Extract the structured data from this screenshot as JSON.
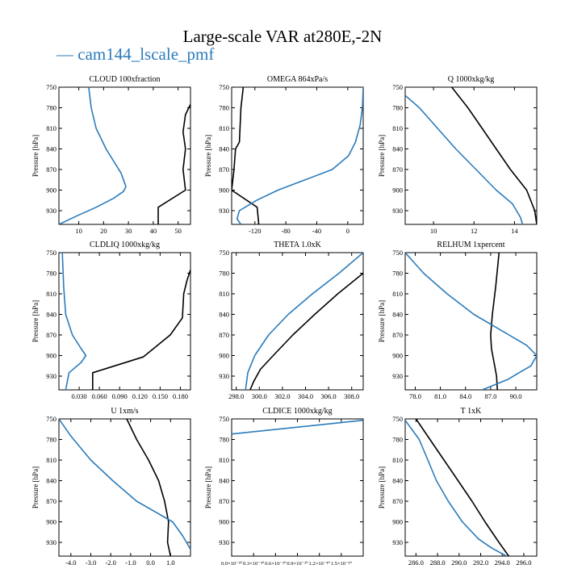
{
  "title": "Large-scale VAR at280E,-2N",
  "legend": {
    "marker": "—",
    "label": "cam144_lscale_pmf"
  },
  "colors": {
    "black_series": "#000000",
    "blue_series": "#2b7bba"
  },
  "chart_data": [
    {
      "type": "line",
      "title": "CLOUD  100xfraction",
      "ylabel": "Pressure [hPa]",
      "ylim": [
        750,
        950
      ],
      "ytick_values": [
        750,
        780,
        810,
        840,
        870,
        900,
        930
      ],
      "ytick_labels": [
        "750",
        "780",
        "810",
        "840",
        "870",
        "900",
        "930"
      ],
      "xlim": [
        2,
        55
      ],
      "xtick_values": [
        10,
        20,
        30,
        40,
        50
      ],
      "xtick_labels": [
        "10",
        "20",
        "30",
        "40",
        "50"
      ],
      "series": [
        {
          "color": "#000000",
          "x": [
            55,
            53,
            52,
            53,
            52,
            53,
            42,
            42
          ],
          "y": [
            775,
            790,
            815,
            840,
            870,
            900,
            925,
            950
          ]
        },
        {
          "color": "#2b7bba",
          "x": [
            14,
            15,
            17,
            21,
            27,
            29,
            28,
            24,
            17,
            9,
            2
          ],
          "y": [
            750,
            780,
            810,
            840,
            875,
            895,
            902,
            912,
            925,
            938,
            950
          ]
        }
      ]
    },
    {
      "type": "line",
      "title": "OMEGA  864xPa/s",
      "ylabel": "Pressure [hPa]",
      "ylim": [
        750,
        950
      ],
      "ytick_values": [
        750,
        780,
        810,
        840,
        870,
        900,
        930
      ],
      "ytick_labels": [
        "750",
        "780",
        "810",
        "840",
        "870",
        "900",
        "930"
      ],
      "xlim": [
        -150,
        20
      ],
      "xtick_values": [
        -120,
        -80,
        -40,
        0
      ],
      "xtick_labels": [
        "-120",
        "-80",
        "-40",
        "0"
      ],
      "series": [
        {
          "color": "#000000",
          "x": [
            -135,
            -138,
            -140,
            -145,
            -147,
            -150,
            -117,
            -115
          ],
          "y": [
            750,
            780,
            830,
            840,
            870,
            900,
            925,
            950
          ]
        },
        {
          "color": "#2b7bba",
          "x": [
            20,
            19,
            16,
            10,
            1,
            -20,
            -55,
            -90,
            -118,
            -140,
            -143,
            -138
          ],
          "y": [
            750,
            780,
            805,
            830,
            850,
            870,
            885,
            900,
            915,
            930,
            942,
            950
          ]
        }
      ]
    },
    {
      "type": "line",
      "title": "Q  1000xkg/kg",
      "ylabel": "Pressure [hPa]",
      "ylim": [
        750,
        950
      ],
      "ytick_values": [
        750,
        780,
        810,
        840,
        870,
        900,
        930
      ],
      "ytick_labels": [
        "750",
        "780",
        "810",
        "840",
        "870",
        "900",
        "930"
      ],
      "xlim": [
        8.6,
        15.1
      ],
      "xtick_values": [
        10,
        12,
        14
      ],
      "xtick_labels": [
        "10",
        "12",
        "14"
      ],
      "series": [
        {
          "color": "#000000",
          "x": [
            10.9,
            11.7,
            12.4,
            13.1,
            13.8,
            14.6,
            15.0,
            15.1
          ],
          "y": [
            750,
            780,
            810,
            840,
            870,
            900,
            930,
            950
          ]
        },
        {
          "color": "#2b7bba",
          "x": [
            8.6,
            9.3,
            10.2,
            11.1,
            12.1,
            13.1,
            13.9,
            14.3,
            14.4
          ],
          "y": [
            762,
            780,
            810,
            840,
            870,
            900,
            920,
            940,
            950
          ]
        }
      ]
    },
    {
      "type": "line",
      "title": "CLDLIQ  1000xkg/kg",
      "ylabel": "Pressure [hPa]",
      "ylim": [
        750,
        950
      ],
      "ytick_values": [
        750,
        780,
        810,
        840,
        870,
        900,
        930
      ],
      "ytick_labels": [
        "750",
        "780",
        "810",
        "840",
        "870",
        "900",
        "930"
      ],
      "xlim": [
        0.0,
        0.195
      ],
      "xtick_values": [
        0.03,
        0.06,
        0.09,
        0.12,
        0.15,
        0.18
      ],
      "xtick_labels": [
        "0.030",
        "0.060",
        "0.090",
        "0.120",
        "0.150",
        "0.180"
      ],
      "series": [
        {
          "color": "#000000",
          "x": [
            0.195,
            0.19,
            0.185,
            0.183,
            0.165,
            0.125,
            0.05,
            0.05
          ],
          "y": [
            775,
            790,
            810,
            845,
            870,
            902,
            925,
            950
          ]
        },
        {
          "color": "#2b7bba",
          "x": [
            0.005,
            0.007,
            0.01,
            0.02,
            0.033,
            0.04,
            0.033,
            0.015,
            0.01
          ],
          "y": [
            750,
            800,
            840,
            870,
            890,
            900,
            910,
            925,
            950
          ]
        }
      ]
    },
    {
      "type": "line",
      "title": "THETA  1.0xK",
      "ylabel": "",
      "ylim": [
        750,
        950
      ],
      "ytick_values": [
        750,
        780,
        810,
        840,
        870,
        900,
        930
      ],
      "ytick_labels": [
        "750",
        "780",
        "810",
        "840",
        "870",
        "900",
        "930"
      ],
      "xlim": [
        297.6,
        309.0
      ],
      "xtick_values": [
        298.0,
        300.0,
        302.0,
        304.0,
        306.0,
        308.0
      ],
      "xtick_labels": [
        "298.0",
        "300.0",
        "302.0",
        "304.0",
        "306.0",
        "308.0"
      ],
      "series": [
        {
          "color": "#000000",
          "x": [
            309.0,
            306.8,
            304.8,
            302.9,
            301.2,
            300.1,
            299.5,
            299.2
          ],
          "y": [
            780,
            810,
            840,
            870,
            900,
            920,
            938,
            950
          ]
        },
        {
          "color": "#2b7bba",
          "x": [
            309.0,
            306.9,
            304.6,
            302.5,
            300.8,
            299.6,
            299.0,
            298.8
          ],
          "y": [
            750,
            780,
            810,
            840,
            870,
            900,
            925,
            950
          ]
        }
      ]
    },
    {
      "type": "line",
      "title": "RELHUM  1xpercent",
      "ylabel": "Pressure [hPa]",
      "ylim": [
        750,
        950
      ],
      "ytick_values": [
        750,
        780,
        810,
        840,
        870,
        900,
        930
      ],
      "ytick_labels": [
        "750",
        "780",
        "810",
        "840",
        "870",
        "900",
        "930"
      ],
      "xlim": [
        76.8,
        92.5
      ],
      "xtick_values": [
        78.0,
        81.0,
        84.0,
        87.0,
        90.0
      ],
      "xtick_labels": [
        "78.0",
        "81.0",
        "84.0",
        "87.0",
        "90.0"
      ],
      "series": [
        {
          "color": "#000000",
          "x": [
            88.0,
            87.6,
            87.2,
            87.0,
            87.1,
            87.4,
            87.7,
            87.8
          ],
          "y": [
            750,
            800,
            840,
            870,
            890,
            910,
            930,
            950
          ]
        },
        {
          "color": "#2b7bba",
          "x": [
            76.8,
            79.0,
            81.8,
            85.0,
            88.5,
            91.3,
            92.5,
            91.8,
            89.0,
            86.0
          ],
          "y": [
            750,
            780,
            810,
            840,
            865,
            885,
            900,
            915,
            935,
            950
          ]
        }
      ]
    },
    {
      "type": "line",
      "title": "U  1xm/s",
      "ylabel": "Pressure [hPa]",
      "ylim": [
        750,
        950
      ],
      "ytick_values": [
        750,
        780,
        810,
        840,
        870,
        900,
        930
      ],
      "ytick_labels": [
        "750",
        "780",
        "810",
        "840",
        "870",
        "900",
        "930"
      ],
      "xlim": [
        -4.6,
        2.0
      ],
      "xtick_values": [
        -4.0,
        -3.0,
        -2.0,
        -1.0,
        0.0,
        1.0
      ],
      "xtick_labels": [
        "-4.0",
        "-3.0",
        "-2.0",
        "-1.0",
        "0.0",
        "1.0"
      ],
      "series": [
        {
          "color": "#000000",
          "x": [
            -1.2,
            -0.7,
            -0.1,
            0.4,
            0.7,
            0.9,
            0.85,
            1.0
          ],
          "y": [
            750,
            780,
            810,
            840,
            870,
            900,
            930,
            950
          ]
        },
        {
          "color": "#2b7bba",
          "x": [
            -4.6,
            -4.0,
            -3.0,
            -1.9,
            -0.7,
            0.5,
            1.1,
            1.6,
            2.0
          ],
          "y": [
            750,
            775,
            810,
            840,
            870,
            890,
            900,
            920,
            940
          ]
        }
      ]
    },
    {
      "type": "line",
      "title": "CLDICE  1000xkg/kg",
      "ylabel": "Pressure [hPa]",
      "ylim": [
        750,
        950
      ],
      "ytick_values": [
        750,
        780,
        810,
        840,
        870,
        900,
        930
      ],
      "ytick_labels": [
        "750",
        "780",
        "810",
        "840",
        "870",
        "900",
        "930"
      ],
      "xlim": [
        0.0,
        1.8
      ],
      "xtick_values": [
        0.0,
        0.3,
        0.6,
        0.9,
        1.2,
        1.5
      ],
      "xtick_labels": [
        "0.0×10⁻³⁰",
        "0.3×10⁻³⁰",
        "0.6×10⁻³⁰",
        "0.9×10⁻³⁰",
        "1.2×10⁻³⁰",
        "1.5×10⁻³⁰"
      ],
      "series": [
        {
          "color": "#2b7bba",
          "x": [
            0.0,
            1.8
          ],
          "y": [
            772,
            752
          ]
        }
      ]
    },
    {
      "type": "line",
      "title": "T  1xK",
      "ylabel": "Pressure [hPa]",
      "ylim": [
        750,
        950
      ],
      "ytick_values": [
        750,
        780,
        810,
        840,
        870,
        900,
        930
      ],
      "ytick_labels": [
        "750",
        "780",
        "810",
        "840",
        "870",
        "900",
        "930"
      ],
      "xlim": [
        285.0,
        297.2
      ],
      "xtick_values": [
        286.0,
        288.0,
        290.0,
        292.0,
        294.0,
        296.0
      ],
      "xtick_labels": [
        "286.0",
        "288.0",
        "290.0",
        "292.0",
        "294.0",
        "296.0"
      ],
      "series": [
        {
          "color": "#000000",
          "x": [
            286.0,
            287.3,
            288.6,
            289.9,
            291.2,
            292.4,
            293.7,
            294.6
          ],
          "y": [
            750,
            780,
            810,
            840,
            870,
            900,
            930,
            950
          ]
        },
        {
          "color": "#2b7bba",
          "x": [
            285.0,
            286.3,
            287.1,
            287.9,
            289.0,
            290.3,
            291.8,
            293.0,
            294.4
          ],
          "y": [
            752,
            780,
            810,
            840,
            870,
            900,
            925,
            938,
            950
          ]
        }
      ]
    }
  ]
}
